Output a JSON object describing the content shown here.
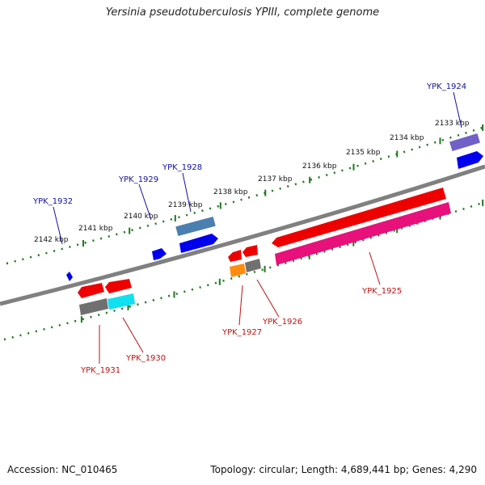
{
  "title": "Yersinia pseudotuberculosis YPIII, complete genome",
  "accession_text": "Accession: NC_010465",
  "summary_text": "Topology: circular; Length: 4,689,441 bp; Genes: 4,290",
  "scale_labels": [
    "2133 kbp",
    "2134 kbp",
    "2135 kbp",
    "2136 kbp",
    "2137 kbp",
    "2138 kbp",
    "2139 kbp",
    "2140 kbp",
    "2141 kbp",
    "2142 kbp"
  ],
  "gene_labels": {
    "top": [
      "YPK_1924",
      "YPK_1928",
      "YPK_1929",
      "YPK_1932"
    ],
    "bottom": [
      "YPK_1925",
      "YPK_1926",
      "YPK_1927",
      "YPK_1930",
      "YPK_1931"
    ]
  },
  "colors": {
    "backbone": "#808080",
    "tick": "#1a7a1a",
    "label_top": "#1010a0",
    "label_bottom": "#c01010",
    "red": "#ee0000",
    "blue": "#0000ee",
    "steel": "#4a7fb0",
    "lavender": "#7060c8",
    "pink": "#e8107a",
    "gray": "#707070",
    "cyan": "#10e0f0",
    "orange": "#ff8c10"
  }
}
